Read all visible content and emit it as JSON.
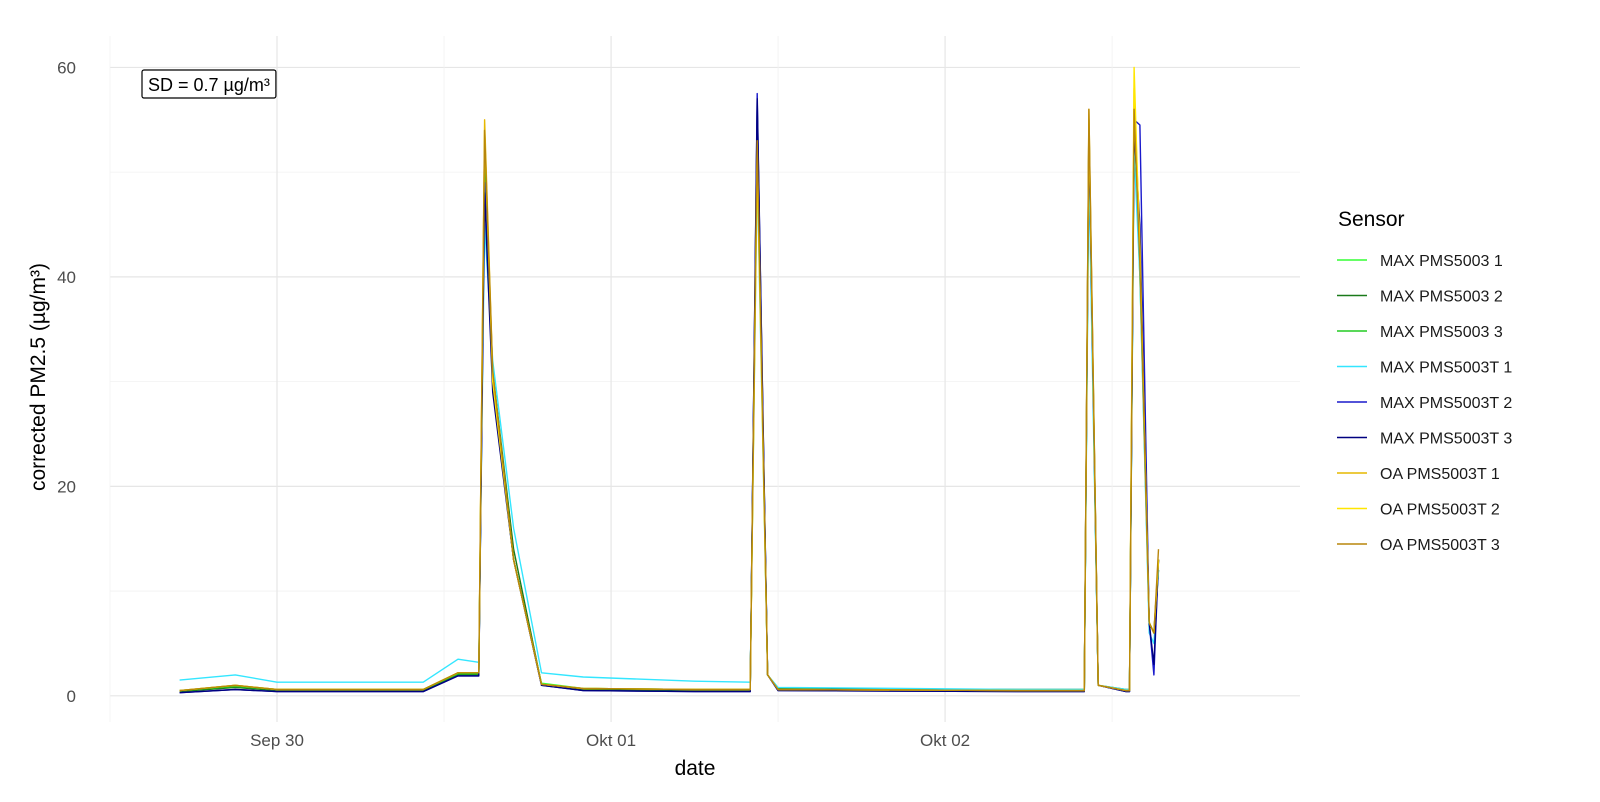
{
  "chart_data": {
    "type": "line",
    "title": "",
    "xlabel": "date",
    "ylabel": "corrected PM2.5 (µg/m³)",
    "x_ticks": [
      "Sep 30",
      "Okt 01",
      "Okt 02"
    ],
    "y_ticks": [
      "0",
      "20",
      "40",
      "60"
    ],
    "ylim": [
      -2.5,
      63
    ],
    "xlim": [
      "2023-09-29 12:00",
      "2023-10-03 01:30"
    ],
    "grid": true,
    "legend": {
      "title": "Sensor",
      "placement": "right"
    },
    "annotation": "SD = 0.7 µg/m³",
    "series": [
      {
        "name": "MAX PMS5003 1",
        "color": "#33ff33",
        "points": [
          [
            "2023-09-29 17:00",
            0.5
          ],
          [
            "2023-09-29 21:00",
            1.0
          ],
          [
            "2023-09-30 00:00",
            0.6
          ],
          [
            "2023-09-30 10:30",
            0.6
          ],
          [
            "2023-09-30 13:00",
            2.2
          ],
          [
            "2023-09-30 14:30",
            2.2
          ],
          [
            "2023-09-30 14:55",
            50
          ],
          [
            "2023-09-30 15:30",
            30
          ],
          [
            "2023-09-30 17:00",
            13
          ],
          [
            "2023-09-30 19:00",
            1.2
          ],
          [
            "2023-09-30 22:00",
            0.7
          ],
          [
            "2023-10-01 06:00",
            0.6
          ],
          [
            "2023-10-01 10:00",
            0.6
          ],
          [
            "2023-10-01 10:30",
            54
          ],
          [
            "2023-10-01 11:15",
            2
          ],
          [
            "2023-10-01 12:00",
            0.6
          ],
          [
            "2023-10-02 06:00",
            0.5
          ],
          [
            "2023-10-02 10:00",
            0.5
          ],
          [
            "2023-10-02 10:20",
            53
          ],
          [
            "2023-10-02 11:00",
            1
          ],
          [
            "2023-10-02 13:00",
            0.5
          ],
          [
            "2023-10-02 13:15",
            0.5
          ],
          [
            "2023-10-02 13:35",
            55
          ],
          [
            "2023-10-02 14:00",
            40
          ],
          [
            "2023-10-02 14:40",
            7
          ],
          [
            "2023-10-02 15:00",
            6
          ],
          [
            "2023-10-02 15:20",
            12
          ]
        ]
      },
      {
        "name": "MAX PMS5003 2",
        "color": "#1a7a1a",
        "points": [
          [
            "2023-09-29 17:00",
            0.4
          ],
          [
            "2023-09-29 21:00",
            0.8
          ],
          [
            "2023-09-30 00:00",
            0.5
          ],
          [
            "2023-09-30 10:30",
            0.5
          ],
          [
            "2023-09-30 13:00",
            2.0
          ],
          [
            "2023-09-30 14:30",
            2.0
          ],
          [
            "2023-09-30 14:55",
            52
          ],
          [
            "2023-09-30 15:30",
            31
          ],
          [
            "2023-09-30 17:00",
            14
          ],
          [
            "2023-09-30 19:00",
            1.1
          ],
          [
            "2023-09-30 22:00",
            0.6
          ],
          [
            "2023-10-01 06:00",
            0.5
          ],
          [
            "2023-10-01 10:00",
            0.5
          ],
          [
            "2023-10-01 10:30",
            56
          ],
          [
            "2023-10-01 11:15",
            2
          ],
          [
            "2023-10-01 12:00",
            0.7
          ],
          [
            "2023-10-02 06:00",
            0.6
          ],
          [
            "2023-10-02 10:00",
            0.6
          ],
          [
            "2023-10-02 10:20",
            54
          ],
          [
            "2023-10-02 11:00",
            1
          ],
          [
            "2023-10-02 13:00",
            0.6
          ],
          [
            "2023-10-02 13:15",
            0.6
          ],
          [
            "2023-10-02 13:35",
            56
          ],
          [
            "2023-10-02 14:00",
            42
          ],
          [
            "2023-10-02 14:40",
            7
          ],
          [
            "2023-10-02 15:00",
            6
          ],
          [
            "2023-10-02 15:20",
            13
          ]
        ]
      },
      {
        "name": "MAX PMS5003 3",
        "color": "#22cc22",
        "points": [
          [
            "2023-09-29 17:00",
            0.5
          ],
          [
            "2023-09-29 21:00",
            0.9
          ],
          [
            "2023-09-30 00:00",
            0.6
          ],
          [
            "2023-09-30 10:30",
            0.6
          ],
          [
            "2023-09-30 13:00",
            2.1
          ],
          [
            "2023-09-30 14:30",
            2.1
          ],
          [
            "2023-09-30 14:55",
            51
          ],
          [
            "2023-09-30 15:30",
            30
          ],
          [
            "2023-09-30 17:00",
            13
          ],
          [
            "2023-09-30 19:00",
            1.1
          ],
          [
            "2023-09-30 22:00",
            0.7
          ],
          [
            "2023-10-01 06:00",
            0.6
          ],
          [
            "2023-10-01 10:00",
            0.6
          ],
          [
            "2023-10-01 10:30",
            53
          ],
          [
            "2023-10-01 11:15",
            2
          ],
          [
            "2023-10-01 12:00",
            0.6
          ],
          [
            "2023-10-02 06:00",
            0.5
          ],
          [
            "2023-10-02 10:00",
            0.5
          ],
          [
            "2023-10-02 10:20",
            52
          ],
          [
            "2023-10-02 11:00",
            1
          ],
          [
            "2023-10-02 13:00",
            0.5
          ],
          [
            "2023-10-02 13:15",
            0.5
          ],
          [
            "2023-10-02 13:35",
            53
          ],
          [
            "2023-10-02 14:00",
            41
          ],
          [
            "2023-10-02 14:40",
            7
          ],
          [
            "2023-10-02 15:00",
            6
          ],
          [
            "2023-10-02 15:20",
            12
          ]
        ]
      },
      {
        "name": "MAX PMS5003T 1",
        "color": "#33e6ff",
        "points": [
          [
            "2023-09-29 17:00",
            1.5
          ],
          [
            "2023-09-29 21:00",
            2.0
          ],
          [
            "2023-09-30 00:00",
            1.3
          ],
          [
            "2023-09-30 10:30",
            1.3
          ],
          [
            "2023-09-30 13:00",
            3.5
          ],
          [
            "2023-09-30 14:30",
            3.2
          ],
          [
            "2023-09-30 14:55",
            45
          ],
          [
            "2023-09-30 15:30",
            32
          ],
          [
            "2023-09-30 17:00",
            16
          ],
          [
            "2023-09-30 19:00",
            2.2
          ],
          [
            "2023-09-30 22:00",
            1.8
          ],
          [
            "2023-10-01 06:00",
            1.4
          ],
          [
            "2023-10-01 10:00",
            1.3
          ],
          [
            "2023-10-01 10:30",
            50
          ],
          [
            "2023-10-01 11:15",
            2
          ],
          [
            "2023-10-01 12:00",
            0.8
          ],
          [
            "2023-10-02 06:00",
            0.6
          ],
          [
            "2023-10-02 10:00",
            0.6
          ],
          [
            "2023-10-02 10:20",
            50
          ],
          [
            "2023-10-02 11:00",
            1
          ],
          [
            "2023-10-02 13:00",
            0.6
          ],
          [
            "2023-10-02 13:15",
            0.6
          ],
          [
            "2023-10-02 13:35",
            52
          ],
          [
            "2023-10-02 14:00",
            40
          ],
          [
            "2023-10-02 14:40",
            6
          ],
          [
            "2023-10-02 15:00",
            5
          ],
          [
            "2023-10-02 15:20",
            12
          ]
        ]
      },
      {
        "name": "MAX PMS5003T 2",
        "color": "#1a1acc",
        "points": [
          [
            "2023-09-29 17:00",
            0.3
          ],
          [
            "2023-09-29 21:00",
            0.6
          ],
          [
            "2023-09-30 00:00",
            0.4
          ],
          [
            "2023-09-30 10:30",
            0.4
          ],
          [
            "2023-09-30 13:00",
            1.9
          ],
          [
            "2023-09-30 14:30",
            1.9
          ],
          [
            "2023-09-30 14:55",
            49
          ],
          [
            "2023-09-30 15:30",
            30
          ],
          [
            "2023-09-30 17:00",
            13
          ],
          [
            "2023-09-30 19:00",
            1.0
          ],
          [
            "2023-09-30 22:00",
            0.5
          ],
          [
            "2023-10-01 06:00",
            0.4
          ],
          [
            "2023-10-01 10:00",
            0.4
          ],
          [
            "2023-10-01 10:30",
            57.5
          ],
          [
            "2023-10-01 11:15",
            2
          ],
          [
            "2023-10-01 12:00",
            0.5
          ],
          [
            "2023-10-02 06:00",
            0.4
          ],
          [
            "2023-10-02 10:00",
            0.4
          ],
          [
            "2023-10-02 10:20",
            55
          ],
          [
            "2023-10-02 11:00",
            1
          ],
          [
            "2023-10-02 13:00",
            0.4
          ],
          [
            "2023-10-02 13:15",
            0.4
          ],
          [
            "2023-10-02 13:35",
            55
          ],
          [
            "2023-10-02 14:00",
            54.5
          ],
          [
            "2023-10-02 14:40",
            7
          ],
          [
            "2023-10-02 15:00",
            2
          ],
          [
            "2023-10-02 15:20",
            13
          ]
        ]
      },
      {
        "name": "MAX PMS5003T 3",
        "color": "#000080",
        "points": [
          [
            "2023-09-29 17:00",
            0.3
          ],
          [
            "2023-09-29 21:00",
            0.6
          ],
          [
            "2023-09-30 00:00",
            0.4
          ],
          [
            "2023-09-30 10:30",
            0.4
          ],
          [
            "2023-09-30 13:00",
            1.9
          ],
          [
            "2023-09-30 14:30",
            1.9
          ],
          [
            "2023-09-30 14:55",
            48
          ],
          [
            "2023-09-30 15:30",
            29
          ],
          [
            "2023-09-30 17:00",
            13
          ],
          [
            "2023-09-30 19:00",
            1.0
          ],
          [
            "2023-09-30 22:00",
            0.5
          ],
          [
            "2023-10-01 06:00",
            0.4
          ],
          [
            "2023-10-01 10:00",
            0.4
          ],
          [
            "2023-10-01 10:30",
            57
          ],
          [
            "2023-10-01 11:15",
            2
          ],
          [
            "2023-10-01 12:00",
            0.5
          ],
          [
            "2023-10-02 06:00",
            0.4
          ],
          [
            "2023-10-02 10:00",
            0.4
          ],
          [
            "2023-10-02 10:20",
            54
          ],
          [
            "2023-10-02 11:00",
            1
          ],
          [
            "2023-10-02 13:00",
            0.4
          ],
          [
            "2023-10-02 13:15",
            0.4
          ],
          [
            "2023-10-02 13:35",
            54
          ],
          [
            "2023-10-02 14:00",
            45
          ],
          [
            "2023-10-02 14:40",
            7
          ],
          [
            "2023-10-02 15:00",
            3
          ],
          [
            "2023-10-02 15:20",
            13
          ]
        ]
      },
      {
        "name": "OA PMS5003T 1",
        "color": "#e6b800",
        "points": [
          [
            "2023-09-29 17:00",
            0.5
          ],
          [
            "2023-09-29 21:00",
            1.0
          ],
          [
            "2023-09-30 00:00",
            0.6
          ],
          [
            "2023-09-30 10:30",
            0.6
          ],
          [
            "2023-09-30 13:00",
            2.2
          ],
          [
            "2023-09-30 14:30",
            2.2
          ],
          [
            "2023-09-30 14:55",
            55
          ],
          [
            "2023-09-30 15:30",
            31
          ],
          [
            "2023-09-30 17:00",
            13
          ],
          [
            "2023-09-30 19:00",
            1.1
          ],
          [
            "2023-09-30 22:00",
            0.7
          ],
          [
            "2023-10-01 06:00",
            0.6
          ],
          [
            "2023-10-01 10:00",
            0.6
          ],
          [
            "2023-10-01 10:30",
            52
          ],
          [
            "2023-10-01 11:15",
            2
          ],
          [
            "2023-10-01 12:00",
            0.6
          ],
          [
            "2023-10-02 06:00",
            0.5
          ],
          [
            "2023-10-02 10:00",
            0.5
          ],
          [
            "2023-10-02 10:20",
            56
          ],
          [
            "2023-10-02 11:00",
            1
          ],
          [
            "2023-10-02 13:00",
            0.5
          ],
          [
            "2023-10-02 13:15",
            0.5
          ],
          [
            "2023-10-02 13:35",
            58
          ],
          [
            "2023-10-02 14:00",
            43
          ],
          [
            "2023-10-02 14:40",
            7
          ],
          [
            "2023-10-02 15:00",
            6
          ],
          [
            "2023-10-02 15:20",
            13
          ]
        ]
      },
      {
        "name": "OA PMS5003T 2",
        "color": "#ffe600",
        "points": [
          [
            "2023-09-29 17:00",
            0.5
          ],
          [
            "2023-09-29 21:00",
            1.0
          ],
          [
            "2023-09-30 00:00",
            0.6
          ],
          [
            "2023-09-30 10:30",
            0.6
          ],
          [
            "2023-09-30 13:00",
            2.2
          ],
          [
            "2023-09-30 14:30",
            2.2
          ],
          [
            "2023-09-30 14:55",
            54
          ],
          [
            "2023-09-30 15:30",
            30
          ],
          [
            "2023-09-30 17:00",
            13
          ],
          [
            "2023-09-30 19:00",
            1.1
          ],
          [
            "2023-09-30 22:00",
            0.7
          ],
          [
            "2023-10-01 06:00",
            0.6
          ],
          [
            "2023-10-01 10:00",
            0.6
          ],
          [
            "2023-10-01 10:30",
            51
          ],
          [
            "2023-10-01 11:15",
            2
          ],
          [
            "2023-10-01 12:00",
            0.6
          ],
          [
            "2023-10-02 06:00",
            0.5
          ],
          [
            "2023-10-02 10:00",
            0.5
          ],
          [
            "2023-10-02 10:20",
            55
          ],
          [
            "2023-10-02 11:00",
            1
          ],
          [
            "2023-10-02 13:00",
            0.5
          ],
          [
            "2023-10-02 13:15",
            0.5
          ],
          [
            "2023-10-02 13:35",
            60
          ],
          [
            "2023-10-02 14:00",
            42
          ],
          [
            "2023-10-02 14:40",
            7
          ],
          [
            "2023-10-02 15:00",
            6
          ],
          [
            "2023-10-02 15:20",
            13
          ]
        ]
      },
      {
        "name": "OA PMS5003T 3",
        "color": "#b8860b",
        "points": [
          [
            "2023-09-29 17:00",
            0.5
          ],
          [
            "2023-09-29 21:00",
            1.0
          ],
          [
            "2023-09-30 00:00",
            0.6
          ],
          [
            "2023-09-30 10:30",
            0.6
          ],
          [
            "2023-09-30 13:00",
            2.2
          ],
          [
            "2023-09-30 14:30",
            2.2
          ],
          [
            "2023-09-30 14:55",
            54
          ],
          [
            "2023-09-30 15:30",
            31
          ],
          [
            "2023-09-30 17:00",
            13
          ],
          [
            "2023-09-30 19:00",
            1.1
          ],
          [
            "2023-09-30 22:00",
            0.7
          ],
          [
            "2023-10-01 06:00",
            0.6
          ],
          [
            "2023-10-01 10:00",
            0.6
          ],
          [
            "2023-10-01 10:30",
            53
          ],
          [
            "2023-10-01 11:15",
            2
          ],
          [
            "2023-10-01 12:00",
            0.6
          ],
          [
            "2023-10-02 06:00",
            0.5
          ],
          [
            "2023-10-02 10:00",
            0.5
          ],
          [
            "2023-10-02 10:20",
            56
          ],
          [
            "2023-10-02 11:00",
            1
          ],
          [
            "2023-10-02 13:00",
            0.5
          ],
          [
            "2023-10-02 13:15",
            0.5
          ],
          [
            "2023-10-02 13:35",
            56
          ],
          [
            "2023-10-02 14:00",
            41
          ],
          [
            "2023-10-02 14:40",
            7
          ],
          [
            "2023-10-02 15:00",
            6
          ],
          [
            "2023-10-02 15:20",
            14
          ]
        ]
      }
    ]
  }
}
